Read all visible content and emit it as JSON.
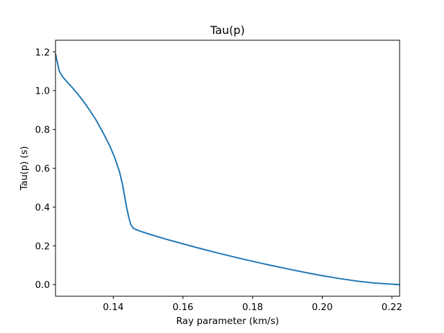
{
  "chart_data": {
    "type": "line",
    "title": "Tau(p)",
    "xlabel": "Ray parameter (km/s)",
    "ylabel": "Tau(p) (s)",
    "xlim": [
      0.1234,
      0.2222
    ],
    "ylim": [
      -0.06,
      1.26
    ],
    "xticks": [
      0.14,
      0.16,
      0.18,
      0.2,
      0.22
    ],
    "xtick_labels": [
      "0.14",
      "0.16",
      "0.18",
      "0.20",
      "0.22"
    ],
    "yticks": [
      0.0,
      0.2,
      0.4,
      0.6,
      0.8,
      1.0,
      1.2
    ],
    "ytick_labels": [
      "0.0",
      "0.2",
      "0.4",
      "0.6",
      "0.8",
      "1.0",
      "1.2"
    ],
    "grid": false,
    "series": [
      {
        "color": "#1f77b4",
        "x": [
          0.1234,
          0.124,
          0.1245,
          0.1255,
          0.127,
          0.129,
          0.131,
          0.133,
          0.135,
          0.137,
          0.139,
          0.1405,
          0.1418,
          0.1426,
          0.1432,
          0.1438,
          0.1444,
          0.145,
          0.1458,
          0.147,
          0.15,
          0.155,
          0.16,
          0.165,
          0.17,
          0.175,
          0.18,
          0.185,
          0.19,
          0.195,
          0.2,
          0.205,
          0.21,
          0.215,
          0.22,
          0.2222
        ],
        "y": [
          1.19,
          1.14,
          1.1,
          1.07,
          1.04,
          1.0,
          0.955,
          0.905,
          0.85,
          0.785,
          0.715,
          0.65,
          0.58,
          0.52,
          0.46,
          0.4,
          0.35,
          0.31,
          0.29,
          0.28,
          0.262,
          0.235,
          0.21,
          0.186,
          0.163,
          0.141,
          0.12,
          0.1,
          0.081,
          0.063,
          0.046,
          0.031,
          0.018,
          0.008,
          0.002,
          0.0
        ]
      }
    ]
  }
}
